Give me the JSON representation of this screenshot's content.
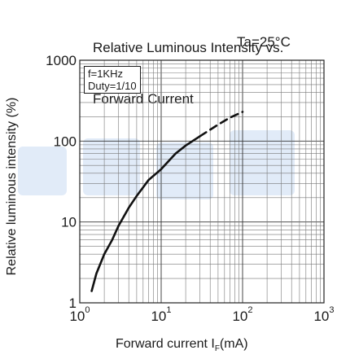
{
  "chart_data": {
    "type": "line",
    "title": [
      "Relative Luminous Intensity vs.",
      "Forward Current"
    ],
    "condition": "Ta=25°C",
    "inset_lines": [
      "f=1KHz",
      "Duty=1/10"
    ],
    "xlabel": {
      "text": "Forward current I",
      "sub": "F",
      "unit": "(mA)"
    },
    "ylabel": "Relative luminous intensity (%)",
    "xscale": "log",
    "yscale": "log",
    "xlim": [
      1,
      1000
    ],
    "ylim": [
      1,
      1000
    ],
    "x_ticks": [
      {
        "base": "10",
        "exp": "0"
      },
      {
        "base": "10",
        "exp": "1"
      },
      {
        "base": "10",
        "exp": "2"
      },
      {
        "base": "10",
        "exp": "3"
      }
    ],
    "y_ticks": [
      "1",
      "10",
      "100",
      "1000"
    ],
    "grid": true,
    "series": [
      {
        "style": "solid",
        "x": [
          1.4,
          1.6,
          2,
          2.5,
          3,
          4,
          5,
          7,
          10,
          15,
          20,
          30
        ],
        "y": [
          1.4,
          2.3,
          4,
          6,
          9,
          15,
          21,
          33,
          45,
          70,
          88,
          115
        ]
      },
      {
        "style": "dashed",
        "x": [
          30,
          50,
          70,
          100
        ],
        "y": [
          115,
          160,
          195,
          230
        ]
      }
    ],
    "watermark_color": "#1e6fd0"
  }
}
